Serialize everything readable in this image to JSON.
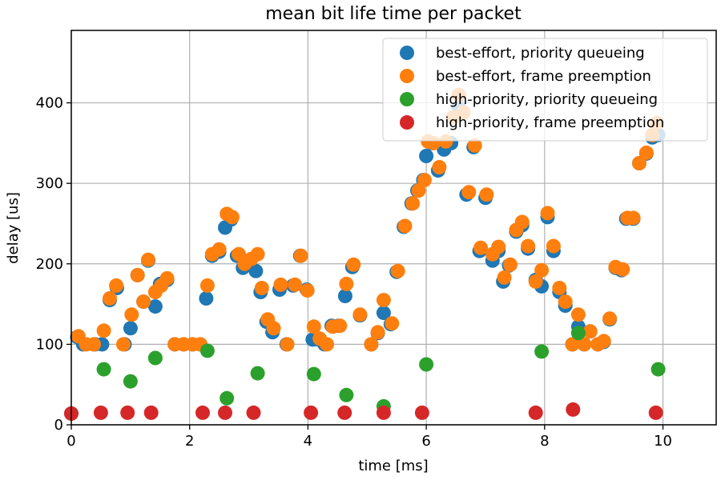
{
  "chart_data": {
    "type": "scatter",
    "title": "mean bit life time per packet",
    "xlabel": "time [ms]",
    "ylabel": "delay [us]",
    "xlim": [
      0,
      10.9
    ],
    "ylim": [
      0,
      490
    ],
    "xticks": [
      0,
      2,
      4,
      6,
      8,
      10
    ],
    "yticks": [
      0,
      100,
      200,
      300,
      400
    ],
    "grid": true,
    "legend_position": "upper right",
    "series": [
      {
        "name": "best-effort, priority queueing",
        "color": "#1f77b4",
        "points": [
          [
            0.0,
            14
          ],
          [
            0.1,
            109
          ],
          [
            0.2,
            100
          ],
          [
            0.4,
            100
          ],
          [
            0.52,
            100
          ],
          [
            0.65,
            155
          ],
          [
            0.77,
            170
          ],
          [
            0.9,
            100
          ],
          [
            1.0,
            120
          ],
          [
            1.12,
            186
          ],
          [
            1.22,
            153
          ],
          [
            1.3,
            204
          ],
          [
            1.42,
            147
          ],
          [
            1.5,
            175
          ],
          [
            1.62,
            180
          ],
          [
            1.75,
            100
          ],
          [
            1.9,
            100
          ],
          [
            2.05,
            100
          ],
          [
            2.18,
            100
          ],
          [
            2.28,
            157
          ],
          [
            2.38,
            210
          ],
          [
            2.5,
            215
          ],
          [
            2.6,
            245
          ],
          [
            2.7,
            255
          ],
          [
            2.8,
            210
          ],
          [
            2.9,
            195
          ],
          [
            3.0,
            200
          ],
          [
            3.12,
            191
          ],
          [
            3.2,
            165
          ],
          [
            3.3,
            128
          ],
          [
            3.4,
            115
          ],
          [
            3.52,
            168
          ],
          [
            3.64,
            100
          ],
          [
            3.75,
            173
          ],
          [
            3.87,
            210
          ],
          [
            3.98,
            168
          ],
          [
            4.08,
            106
          ],
          [
            4.18,
            106
          ],
          [
            4.28,
            100
          ],
          [
            4.4,
            123
          ],
          [
            4.52,
            123
          ],
          [
            4.63,
            160
          ],
          [
            4.75,
            196
          ],
          [
            4.88,
            136
          ],
          [
            5.07,
            100
          ],
          [
            5.18,
            114
          ],
          [
            5.28,
            139
          ],
          [
            5.4,
            125
          ],
          [
            5.5,
            190
          ],
          [
            5.62,
            246
          ],
          [
            5.75,
            275
          ],
          [
            5.85,
            291
          ],
          [
            5.95,
            304
          ],
          [
            6.0,
            334
          ],
          [
            6.1,
            350
          ],
          [
            6.2,
            316
          ],
          [
            6.3,
            342
          ],
          [
            6.42,
            350
          ],
          [
            6.55,
            395
          ],
          [
            6.68,
            286
          ],
          [
            6.8,
            345
          ],
          [
            6.9,
            216
          ],
          [
            7.0,
            282
          ],
          [
            7.12,
            204
          ],
          [
            7.22,
            216
          ],
          [
            7.3,
            178
          ],
          [
            7.4,
            198
          ],
          [
            7.52,
            240
          ],
          [
            7.62,
            248
          ],
          [
            7.72,
            219
          ],
          [
            7.85,
            180
          ],
          [
            7.95,
            172
          ],
          [
            8.05,
            258
          ],
          [
            8.15,
            216
          ],
          [
            8.25,
            165
          ],
          [
            8.35,
            148
          ],
          [
            8.47,
            100
          ],
          [
            8.57,
            122
          ],
          [
            8.67,
            100
          ],
          [
            8.77,
            116
          ],
          [
            8.9,
            100
          ],
          [
            9.0,
            103
          ],
          [
            9.1,
            131
          ],
          [
            9.2,
            195
          ],
          [
            9.3,
            192
          ],
          [
            9.38,
            256
          ],
          [
            9.5,
            256
          ],
          [
            9.6,
            325
          ],
          [
            9.72,
            337
          ],
          [
            9.82,
            357
          ],
          [
            9.92,
            360
          ]
        ]
      },
      {
        "name": "best-effort, frame preemption",
        "color": "#ff7f0e",
        "points": [
          [
            0.12,
            110
          ],
          [
            0.25,
            100
          ],
          [
            0.38,
            100
          ],
          [
            0.55,
            117
          ],
          [
            0.65,
            157
          ],
          [
            0.76,
            173
          ],
          [
            0.88,
            100
          ],
          [
            1.02,
            137
          ],
          [
            1.12,
            186
          ],
          [
            1.22,
            153
          ],
          [
            1.3,
            205
          ],
          [
            1.42,
            165
          ],
          [
            1.52,
            173
          ],
          [
            1.62,
            182
          ],
          [
            1.75,
            100
          ],
          [
            1.9,
            100
          ],
          [
            2.05,
            100
          ],
          [
            2.18,
            100
          ],
          [
            2.3,
            173
          ],
          [
            2.38,
            212
          ],
          [
            2.5,
            218
          ],
          [
            2.63,
            262
          ],
          [
            2.72,
            258
          ],
          [
            2.83,
            212
          ],
          [
            2.93,
            200
          ],
          [
            3.04,
            206
          ],
          [
            3.15,
            212
          ],
          [
            3.22,
            170
          ],
          [
            3.32,
            131
          ],
          [
            3.42,
            120
          ],
          [
            3.54,
            174
          ],
          [
            3.65,
            100
          ],
          [
            3.78,
            174
          ],
          [
            3.88,
            210
          ],
          [
            3.99,
            167
          ],
          [
            4.1,
            122
          ],
          [
            4.2,
            107
          ],
          [
            4.32,
            100
          ],
          [
            4.42,
            122
          ],
          [
            4.54,
            123
          ],
          [
            4.65,
            175
          ],
          [
            4.77,
            199
          ],
          [
            4.88,
            137
          ],
          [
            5.07,
            100
          ],
          [
            5.18,
            115
          ],
          [
            5.28,
            155
          ],
          [
            5.42,
            126
          ],
          [
            5.52,
            191
          ],
          [
            5.64,
            247
          ],
          [
            5.77,
            275
          ],
          [
            5.87,
            291
          ],
          [
            5.97,
            304
          ],
          [
            6.03,
            352
          ],
          [
            6.12,
            350
          ],
          [
            6.22,
            320
          ],
          [
            6.33,
            352
          ],
          [
            6.45,
            382
          ],
          [
            6.55,
            410
          ],
          [
            6.63,
            388
          ],
          [
            6.72,
            289
          ],
          [
            6.82,
            347
          ],
          [
            6.92,
            220
          ],
          [
            7.02,
            286
          ],
          [
            7.12,
            212
          ],
          [
            7.22,
            221
          ],
          [
            7.32,
            183
          ],
          [
            7.42,
            199
          ],
          [
            7.52,
            242
          ],
          [
            7.62,
            252
          ],
          [
            7.72,
            222
          ],
          [
            7.85,
            178
          ],
          [
            7.95,
            192
          ],
          [
            8.05,
            263
          ],
          [
            8.15,
            222
          ],
          [
            8.25,
            170
          ],
          [
            8.35,
            153
          ],
          [
            8.47,
            100
          ],
          [
            8.57,
            137
          ],
          [
            8.67,
            100
          ],
          [
            8.77,
            116
          ],
          [
            8.9,
            100
          ],
          [
            9.0,
            104
          ],
          [
            9.1,
            132
          ],
          [
            9.2,
            196
          ],
          [
            9.32,
            193
          ],
          [
            9.4,
            257
          ],
          [
            9.5,
            257
          ],
          [
            9.6,
            325
          ],
          [
            9.72,
            338
          ],
          [
            9.82,
            360
          ],
          [
            9.9,
            375
          ]
        ]
      },
      {
        "name": "high-priority, priority queueing",
        "color": "#2ca02c",
        "points": [
          [
            0.55,
            69
          ],
          [
            1.0,
            54
          ],
          [
            1.42,
            83
          ],
          [
            2.3,
            92
          ],
          [
            2.63,
            33
          ],
          [
            3.15,
            64
          ],
          [
            4.1,
            63
          ],
          [
            4.65,
            37
          ],
          [
            5.28,
            23
          ],
          [
            6.0,
            75
          ],
          [
            7.95,
            91
          ],
          [
            8.57,
            114
          ],
          [
            9.92,
            69
          ]
        ]
      },
      {
        "name": "high-priority, frame preemption",
        "color": "#d62728",
        "points": [
          [
            0.0,
            14
          ],
          [
            0.5,
            15
          ],
          [
            0.95,
            15
          ],
          [
            1.35,
            15
          ],
          [
            2.22,
            15
          ],
          [
            2.6,
            15
          ],
          [
            3.08,
            15
          ],
          [
            4.05,
            15
          ],
          [
            4.62,
            15
          ],
          [
            5.28,
            15
          ],
          [
            5.93,
            15
          ],
          [
            7.85,
            15
          ],
          [
            8.48,
            19
          ],
          [
            9.88,
            15
          ]
        ]
      }
    ]
  }
}
